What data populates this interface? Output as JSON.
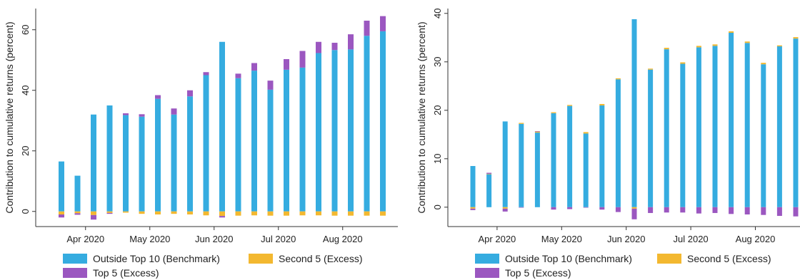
{
  "colors": {
    "benchmark": "#35ACE0",
    "second5": "#F3B830",
    "top5": "#9B57C0",
    "axis": "#333333"
  },
  "legend": {
    "benchmark": "Outside Top 10 (Benchmark)",
    "second5": "Second 5 (Excess)",
    "top5": "Top 5 (Excess)"
  },
  "chart_data": [
    {
      "type": "bar",
      "stacked": true,
      "ylabel": "Contribution to cumulative returns (percent)",
      "ylim": [
        -5,
        67
      ],
      "yticks": [
        0,
        20,
        40,
        60
      ],
      "xtick_labels": [
        "Apr 2020",
        "May 2020",
        "Jun 2020",
        "Jul 2020",
        "Aug 2020"
      ],
      "xtick_after_bar": [
        1,
        5,
        9,
        13,
        17
      ],
      "legend_position": "bottom",
      "categories": [
        "1",
        "2",
        "3",
        "4",
        "5",
        "6",
        "7",
        "8",
        "9",
        "10",
        "11",
        "12",
        "13",
        "14",
        "15",
        "16",
        "17",
        "18",
        "19",
        "20",
        "21"
      ],
      "series": [
        {
          "name": "Outside Top 10 (Benchmark)",
          "key": "benchmark",
          "values": [
            16.5,
            11.8,
            32.0,
            35.0,
            31.8,
            31.3,
            37.2,
            32.0,
            38.0,
            45.0,
            56.0,
            44.0,
            46.5,
            40.2,
            46.8,
            47.5,
            52.3,
            53.3,
            53.5,
            58.0,
            59.5
          ]
        },
        {
          "name": "Second 5 (Excess)",
          "key": "second5",
          "values": [
            -1.0,
            -0.6,
            -1.2,
            -0.5,
            -0.4,
            -0.8,
            -1.0,
            -0.8,
            -1.0,
            -1.3,
            -1.5,
            -1.4,
            -1.3,
            -1.4,
            -1.4,
            -1.3,
            -1.3,
            -1.4,
            -1.4,
            -1.4,
            -1.4
          ]
        },
        {
          "name": "Top 5 (Excess)",
          "key": "top5",
          "values": [
            -1.0,
            -0.5,
            -1.5,
            -0.3,
            0.6,
            0.8,
            1.2,
            2.0,
            2.0,
            1.0,
            -0.5,
            1.5,
            2.5,
            3.0,
            3.5,
            5.5,
            3.7,
            2.4,
            5.0,
            5.0,
            5.0
          ]
        }
      ]
    },
    {
      "type": "bar",
      "stacked": true,
      "ylabel": "Contribution to cumulative returns (percent)",
      "ylim": [
        -4,
        41
      ],
      "yticks": [
        0,
        10,
        20,
        30,
        40
      ],
      "xtick_labels": [
        "Apr 2020",
        "May 2020",
        "Jun 2020",
        "Jul 2020",
        "Aug 2020"
      ],
      "xtick_after_bar": [
        1,
        5,
        9,
        13,
        17
      ],
      "legend_position": "bottom",
      "categories": [
        "1",
        "2",
        "3",
        "4",
        "5",
        "6",
        "7",
        "8",
        "9",
        "10",
        "11",
        "12",
        "13",
        "14",
        "15",
        "16",
        "17",
        "18",
        "19",
        "20",
        "21"
      ],
      "series": [
        {
          "name": "Outside Top 10 (Benchmark)",
          "key": "benchmark",
          "values": [
            8.5,
            6.8,
            17.7,
            17.2,
            15.4,
            19.4,
            20.9,
            15.2,
            21.0,
            26.4,
            38.8,
            28.4,
            32.6,
            29.6,
            33.0,
            33.3,
            36.0,
            33.9,
            29.5,
            33.2,
            34.8
          ]
        },
        {
          "name": "Second 5 (Excess)",
          "key": "second5",
          "values": [
            -0.3,
            0.1,
            -0.3,
            0.2,
            0.2,
            0.2,
            0.2,
            0.3,
            0.3,
            0.2,
            -0.3,
            0.2,
            0.3,
            0.3,
            0.3,
            0.3,
            0.3,
            0.3,
            0.3,
            0.2,
            0.3
          ]
        },
        {
          "name": "Top 5 (Excess)",
          "key": "top5",
          "values": [
            -0.3,
            0.2,
            -0.6,
            -0.1,
            0.1,
            -0.5,
            -0.4,
            -0.1,
            -0.5,
            -1.0,
            -2.2,
            -1.2,
            -1.1,
            -1.1,
            -1.3,
            -1.2,
            -1.4,
            -1.5,
            -1.6,
            -1.8,
            -1.9
          ]
        }
      ]
    }
  ]
}
